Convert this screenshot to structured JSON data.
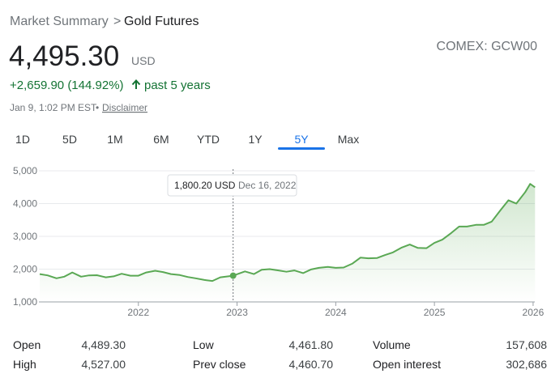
{
  "breadcrumb": {
    "parent": "Market Summary",
    "separator": ">",
    "current": "Gold Futures"
  },
  "price": {
    "value": "4,495.30",
    "currency": "USD"
  },
  "symbol": "COMEX: GCW00",
  "change": {
    "amount": "+2,659.90 (144.92%)",
    "period": "past 5 years"
  },
  "timestamp": {
    "time": "Jan 9, 1:02 PM EST",
    "separator": "•",
    "link": "Disclaimer"
  },
  "tabs": {
    "items": [
      "1D",
      "5D",
      "1M",
      "6M",
      "YTD",
      "1Y",
      "5Y",
      "Max"
    ],
    "active": "5Y"
  },
  "chart_data": {
    "type": "area",
    "x": [
      2021.0,
      2021.08,
      2021.17,
      2021.25,
      2021.33,
      2021.42,
      2021.5,
      2021.58,
      2021.67,
      2021.75,
      2021.83,
      2021.92,
      2022.0,
      2022.08,
      2022.17,
      2022.25,
      2022.33,
      2022.42,
      2022.5,
      2022.58,
      2022.67,
      2022.75,
      2022.83,
      2022.96,
      2023.08,
      2023.17,
      2023.25,
      2023.33,
      2023.42,
      2023.5,
      2023.58,
      2023.67,
      2023.75,
      2023.83,
      2023.92,
      2024.0,
      2024.08,
      2024.17,
      2024.25,
      2024.33,
      2024.42,
      2024.5,
      2024.58,
      2024.67,
      2024.75,
      2024.83,
      2024.92,
      2025.0,
      2025.08,
      2025.17,
      2025.25,
      2025.33,
      2025.42,
      2025.5,
      2025.58,
      2025.67,
      2025.75,
      2025.83,
      2025.92,
      2025.97,
      2026.02
    ],
    "series": [
      {
        "color": "#5aa854",
        "values": [
          1850,
          1810,
          1720,
          1770,
          1900,
          1770,
          1810,
          1815,
          1750,
          1780,
          1860,
          1800,
          1800,
          1900,
          1950,
          1910,
          1850,
          1820,
          1760,
          1720,
          1670,
          1640,
          1750,
          1800.2,
          1930,
          1850,
          1980,
          2000,
          1960,
          1920,
          1960,
          1880,
          1990,
          2040,
          2070,
          2040,
          2050,
          2170,
          2350,
          2330,
          2340,
          2430,
          2510,
          2660,
          2750,
          2650,
          2640,
          2800,
          2900,
          3100,
          3300,
          3300,
          3350,
          3350,
          3450,
          3800,
          4100,
          4000,
          4350,
          4600,
          4495.3
        ]
      }
    ],
    "xlim": [
      2021,
      2026.05
    ],
    "xticks": [
      2022,
      2023,
      2024,
      2025,
      2026
    ],
    "ylim": [
      1000,
      5000
    ],
    "yticks": [
      {
        "value": 1000,
        "label": "1,000"
      },
      {
        "value": 2000,
        "label": "2,000"
      },
      {
        "value": 3000,
        "label": "3,000"
      },
      {
        "value": 4000,
        "label": "4,000"
      },
      {
        "value": 5000,
        "label": "5,000"
      }
    ],
    "grid": true,
    "tooltip": {
      "index": 23,
      "value_label": "1,800.20 USD",
      "date": "Dec 16, 2022"
    }
  },
  "stats": [
    [
      "Open",
      "4,489.30",
      "Low",
      "4,461.80",
      "Volume",
      "157,608"
    ],
    [
      "High",
      "4,527.00",
      "Prev close",
      "4,460.70",
      "Open interest",
      "302,686"
    ]
  ]
}
